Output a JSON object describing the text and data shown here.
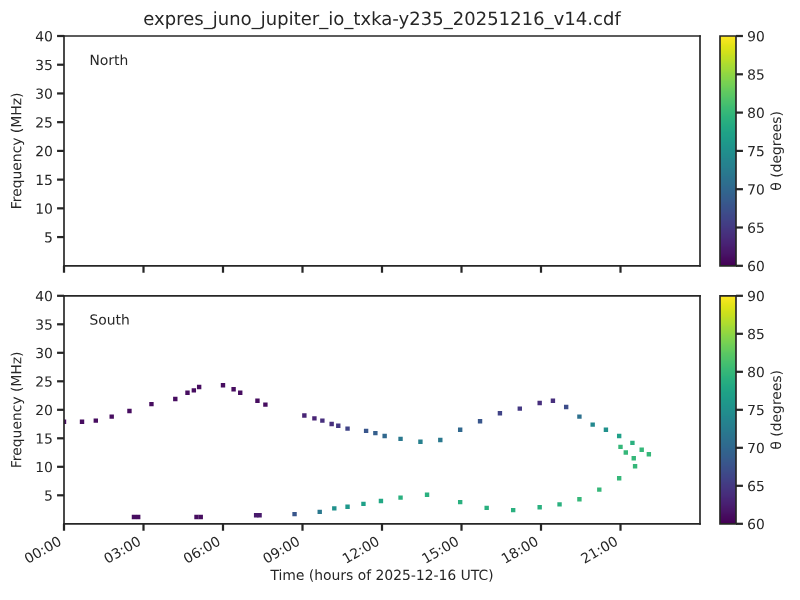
{
  "chart_data": [
    {
      "type": "scatter",
      "title": "expres_juno_jupiter_io_txka-y235_20251216_v14.cdf",
      "ylabel": "Frequency (MHz)",
      "clabel": "θ (degrees)",
      "annotations": [
        "North"
      ],
      "marker": "square",
      "grid": false,
      "tick_labels": "y",
      "xlim": [
        0,
        24
      ],
      "xticks": [
        0,
        3,
        6,
        9,
        12,
        15,
        18,
        21
      ],
      "ylim": [
        0,
        40
      ],
      "yticks": [
        5,
        10,
        15,
        20,
        25,
        30,
        35,
        40
      ],
      "clim": [
        60,
        90
      ],
      "cticks": [
        60,
        65,
        70,
        75,
        80,
        85,
        90
      ]
    },
    {
      "type": "scatter",
      "xlabel": "Time (hours of 2025-12-16 UTC)",
      "ylabel": "Frequency (MHz)",
      "clabel": "θ (degrees)",
      "annotations": [
        "South"
      ],
      "marker": "square",
      "grid": false,
      "x": [
        0,
        0.68,
        1.2,
        1.8,
        2.47,
        3.3,
        4.2,
        4.66,
        4.9,
        5.1,
        6.0,
        6.4,
        6.65,
        7.3,
        7.6,
        9.07,
        9.45,
        9.75,
        10.1,
        10.35,
        10.7,
        11.4,
        11.75,
        12.1,
        12.7,
        13.45,
        14.2,
        14.95,
        15.7,
        16.45,
        17.2,
        17.95,
        18.45,
        18.95,
        19.45,
        19.95,
        20.45,
        20.95,
        21.45,
        21.8,
        22.07,
        21.5,
        21.2,
        21.0,
        21.55,
        20.95,
        20.2,
        19.45,
        18.7,
        17.95,
        16.95,
        15.95,
        14.95,
        13.7,
        12.7,
        11.96,
        11.3,
        10.7,
        10.2,
        9.65,
        8.7,
        7.38,
        7.25,
        5.16,
        5.0,
        2.8,
        2.64
      ],
      "values": [
        17.9,
        17.9,
        18.1,
        18.8,
        19.8,
        21.0,
        21.9,
        23.0,
        23.4,
        24.0,
        24.3,
        23.6,
        23.0,
        21.6,
        20.9,
        19.0,
        18.5,
        18.1,
        17.5,
        17.2,
        16.7,
        16.3,
        15.9,
        15.4,
        14.9,
        14.4,
        14.7,
        16.5,
        18.0,
        19.4,
        20.2,
        21.2,
        21.6,
        20.5,
        18.8,
        17.4,
        16.5,
        15.4,
        14.2,
        13.0,
        12.2,
        11.5,
        12.5,
        13.5,
        10.1,
        8.0,
        6.0,
        4.3,
        3.4,
        2.9,
        2.4,
        2.8,
        3.8,
        5.1,
        4.6,
        4.0,
        3.5,
        3.0,
        2.7,
        2.1,
        1.7,
        1.5,
        1.5,
        1.2,
        1.2,
        1.2,
        1.2
      ],
      "cvalues": [
        61,
        61,
        61,
        61,
        61,
        61,
        61,
        61,
        61,
        61,
        61,
        61,
        61,
        61,
        61,
        63,
        63,
        64,
        64,
        65,
        66,
        68,
        69,
        70,
        72,
        73,
        72,
        70,
        68,
        66,
        65,
        64,
        64,
        67,
        71,
        74,
        75,
        77,
        79,
        80,
        80,
        80,
        80,
        80,
        80,
        80,
        80,
        80,
        79,
        79,
        79,
        79,
        79,
        79,
        79,
        78,
        77,
        76,
        75,
        72,
        68,
        62,
        62,
        61,
        61,
        61,
        61
      ],
      "xlim": [
        0,
        24
      ],
      "xticks": [
        {
          "value": 0,
          "label": "00:00"
        },
        {
          "value": 3,
          "label": "03:00"
        },
        {
          "value": 6,
          "label": "06:00"
        },
        {
          "value": 9,
          "label": "09:00"
        },
        {
          "value": 12,
          "label": "12:00"
        },
        {
          "value": 15,
          "label": "15:00"
        },
        {
          "value": 18,
          "label": "18:00"
        },
        {
          "value": 21,
          "label": "21:00"
        }
      ],
      "ylim": [
        0,
        40
      ],
      "yticks": [
        5,
        10,
        15,
        20,
        25,
        30,
        35,
        40
      ],
      "clim": [
        60,
        90
      ],
      "cticks": [
        60,
        65,
        70,
        75,
        80,
        85,
        90
      ]
    }
  ]
}
